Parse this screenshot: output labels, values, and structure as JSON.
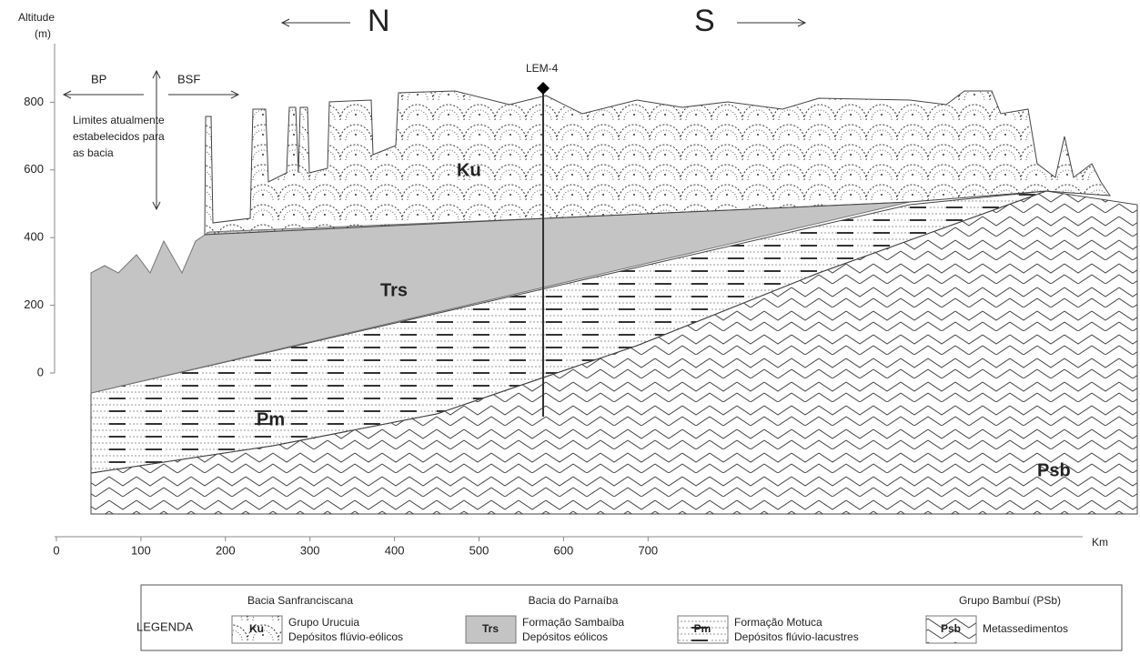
{
  "header": {
    "north": "N",
    "south": "S"
  },
  "axes": {
    "y_title": "Altitude",
    "y_unit": "(m)",
    "y_ticks": [
      0,
      200,
      400,
      600,
      800
    ],
    "x_unit": "Km",
    "x_ticks": [
      0,
      100,
      200,
      300,
      400,
      500,
      600,
      700
    ]
  },
  "annotations": {
    "bp": "BP",
    "bsf": "BSF",
    "limits_note": [
      "Limites atualmente",
      "estabelecidos para",
      "as bacia"
    ],
    "well": "LEM-4"
  },
  "units": {
    "ku": "Ku",
    "trs": "Trs",
    "pm": "Pm",
    "psb": "Psb"
  },
  "legend": {
    "title": "LEGENDA",
    "groups": [
      {
        "heading": "Bacia Sanfranciscana",
        "items": [
          {
            "symbol": "Ku",
            "name": "Grupo Urucuia",
            "description": "Depósitos flúvio-eólicos"
          }
        ]
      },
      {
        "heading": "Bacia do Parnaíba",
        "items": [
          {
            "symbol": "Trs",
            "name": "Formação Sambaíba",
            "description": "Depósitos eólicos"
          },
          {
            "symbol": "Pm",
            "name": "Formação Motuca",
            "description": "Depósitos flúvio-lacustres"
          }
        ]
      },
      {
        "heading": "Grupo Bambuí (PSb)",
        "items": [
          {
            "symbol": "Psb",
            "name": "Metassedimentos"
          }
        ]
      }
    ]
  }
}
